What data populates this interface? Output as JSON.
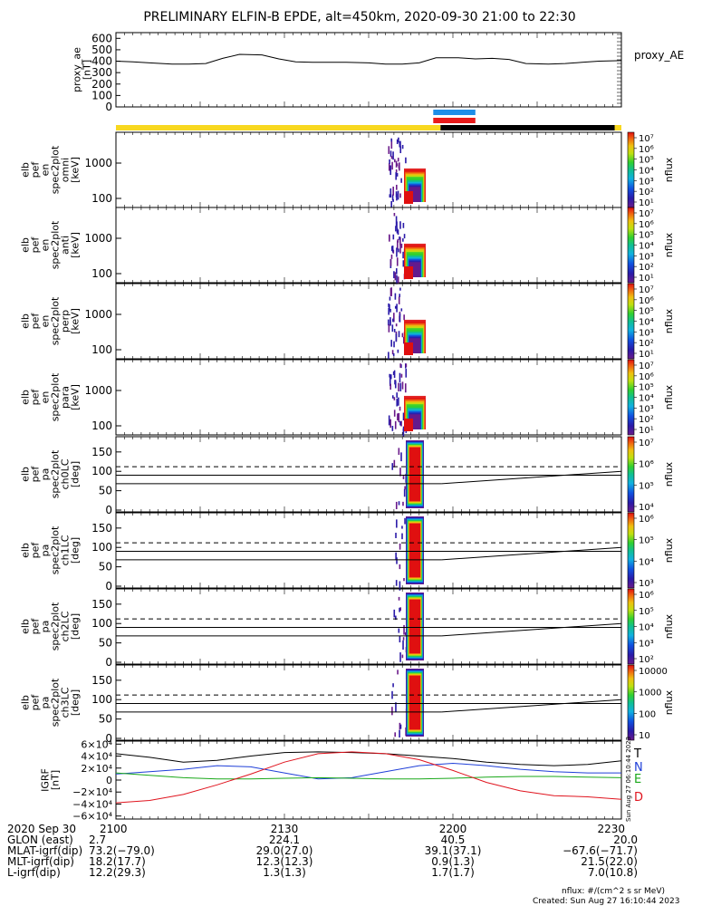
{
  "chart_data": {
    "type": "stacked-timeseries",
    "title": "PRELIMINARY ELFIN-B EPDE, alt=450km, 2020-09-30 21:00 to 22:30",
    "proxy_ae": {
      "ylabel": "proxy_ae\n[nT]",
      "legend": "proxy_AE",
      "ylim": [
        0,
        650
      ],
      "yticks": [
        "600",
        "500",
        "400",
        "300",
        "200",
        "100",
        "0"
      ],
      "ytick_values": [
        600,
        500,
        400,
        300,
        200,
        100,
        0
      ],
      "x_minutes": [
        0,
        3,
        6,
        10,
        13,
        16,
        19,
        22,
        26,
        29,
        32,
        35,
        38,
        41,
        45,
        48,
        51,
        54,
        57,
        61,
        64,
        67,
        70,
        73,
        77,
        80,
        83,
        86,
        90
      ],
      "values": [
        400,
        395,
        385,
        375,
        375,
        380,
        425,
        460,
        455,
        420,
        395,
        390,
        390,
        390,
        385,
        375,
        375,
        385,
        430,
        430,
        420,
        425,
        415,
        380,
        375,
        380,
        390,
        400,
        405
      ]
    },
    "status_bars": {
      "top_blue": [
        56.5,
        64.0
      ],
      "top_red": [
        56.5,
        64.0
      ],
      "yellow_ranges": [
        [
          0,
          57.8
        ],
        [
          88.8,
          90
        ]
      ],
      "black_range": [
        57.8,
        88.8
      ]
    },
    "spectra_panels": [
      {
        "ylabel": "elb\npef\nen\nspec2plot\nomni\n[keV]",
        "yticks": [
          "1000",
          "100"
        ],
        "cbar_labels": [
          "10⁷",
          "10⁶",
          "10⁵",
          "10⁴",
          "10³",
          "10²",
          "10¹"
        ],
        "cbar_unit": "nflux"
      },
      {
        "ylabel": "elb\npef\nen\nspec2plot\nanti\n[keV]",
        "yticks": [
          "1000",
          "100"
        ],
        "cbar_labels": [
          "10⁷",
          "10⁶",
          "10⁵",
          "10⁴",
          "10³",
          "10²",
          "10¹"
        ],
        "cbar_unit": "nflux"
      },
      {
        "ylabel": "elb\npef\nen\nspec2plot\nperp\n[keV]",
        "yticks": [
          "1000",
          "100"
        ],
        "cbar_labels": [
          "10⁷",
          "10⁶",
          "10⁵",
          "10⁴",
          "10³",
          "10²",
          "10¹"
        ],
        "cbar_unit": "nflux"
      },
      {
        "ylabel": "elb\npef\nen\nspec2plot\npara\n[keV]",
        "yticks": [
          "1000",
          "100"
        ],
        "cbar_labels": [
          "10⁷",
          "10⁶",
          "10⁵",
          "10⁴",
          "10³",
          "10²",
          "10¹"
        ],
        "cbar_unit": "nflux"
      }
    ],
    "pitch_panels": [
      {
        "ylabel": "elb\npef\npa\nspec2plot\nch0LC\n[deg]",
        "yticks": [
          "150",
          "100",
          "50",
          "0"
        ],
        "cbar_labels": [
          "10⁷",
          "10⁶",
          "10⁵",
          "10⁴"
        ],
        "cbar_unit": "nflux"
      },
      {
        "ylabel": "elb\npef\npa\nspec2plot\nch1LC\n[deg]",
        "yticks": [
          "150",
          "100",
          "50",
          "0"
        ],
        "cbar_labels": [
          "10⁶",
          "10⁵",
          "10⁴",
          "10³"
        ],
        "cbar_unit": "nflux"
      },
      {
        "ylabel": "elb\npef\npa\nspec2plot\nch2LC\n[deg]",
        "yticks": [
          "150",
          "100",
          "50",
          "0"
        ],
        "cbar_labels": [
          "10⁶",
          "10⁵",
          "10⁴",
          "10³",
          "10²"
        ],
        "cbar_unit": "nflux"
      },
      {
        "ylabel": "elb\npef\npa\nspec2plot\nch3LC\n[deg]",
        "yticks": [
          "150",
          "100",
          "50",
          "0"
        ],
        "cbar_labels": [
          "10000",
          "1000",
          "100",
          "10"
        ],
        "cbar_unit": "nflux"
      }
    ],
    "igrf": {
      "ylabel": "IGRF\n[nT]",
      "yticks": [
        "6×10⁴",
        "4×10⁴",
        "2×10⁴",
        "0",
        "−2×10⁴",
        "−4×10⁴",
        "−6×10⁴"
      ],
      "ytick_values": [
        60000,
        40000,
        20000,
        0,
        -20000,
        -40000,
        -60000
      ],
      "legend": [
        {
          "name": "T",
          "color": "#000000"
        },
        {
          "name": "N",
          "color": "#1f3fd8"
        },
        {
          "name": "E",
          "color": "#1aa81a"
        },
        {
          "name": "D",
          "color": "#e0141e"
        }
      ],
      "side_note": "Sun Aug 27 06:10:44 2023",
      "x_minutes": [
        0,
        6,
        12,
        18,
        24,
        30,
        36,
        42,
        48,
        54,
        60,
        66,
        72,
        78,
        84,
        90
      ],
      "T": [
        44000,
        38000,
        30000,
        33000,
        40000,
        46000,
        47000,
        46000,
        44000,
        40000,
        36000,
        30000,
        26000,
        24000,
        26000,
        32000
      ],
      "N": [
        10000,
        14000,
        18000,
        24000,
        22000,
        12000,
        2000,
        4000,
        14000,
        24000,
        28000,
        24000,
        18000,
        14000,
        12000,
        12000
      ],
      "E": [
        12000,
        8000,
        4000,
        2000,
        2000,
        3000,
        4000,
        3000,
        2000,
        2000,
        3000,
        5000,
        6000,
        6000,
        5000,
        4000
      ],
      "D": [
        -38000,
        -34000,
        -24000,
        -8000,
        10000,
        30000,
        44000,
        47000,
        44000,
        34000,
        16000,
        -4000,
        -18000,
        -26000,
        -28000,
        -32000
      ]
    },
    "xaxis": {
      "row_labels": [
        "2020 Sep 30",
        "GLON (east)",
        "MLAT-igrf(dip)",
        "MLT-igrf(dip)",
        "L-igrf(dip)"
      ],
      "columns": [
        {
          "time": "2100",
          "values": [
            "2.7",
            "73.2(−79.0)",
            "18.2(17.7)",
            "12.2(29.3)"
          ]
        },
        {
          "time": "2130",
          "values": [
            "224.1",
            "29.0(27.0)",
            "12.3(12.3)",
            "1.3(1.3)"
          ]
        },
        {
          "time": "2200",
          "values": [
            "40.5",
            "39.1(37.1)",
            "0.9(1.3)",
            "1.7(1.7)"
          ]
        },
        {
          "time": "2230",
          "values": [
            "20.0",
            "−67.6(−71.7)",
            "21.5(22.0)",
            "7.0(10.8)"
          ]
        }
      ]
    },
    "footer": {
      "units": "nflux: #/(cm^2 s sr MeV)",
      "created": "Created: Sun Aug 27 16:10:44 2023"
    }
  }
}
